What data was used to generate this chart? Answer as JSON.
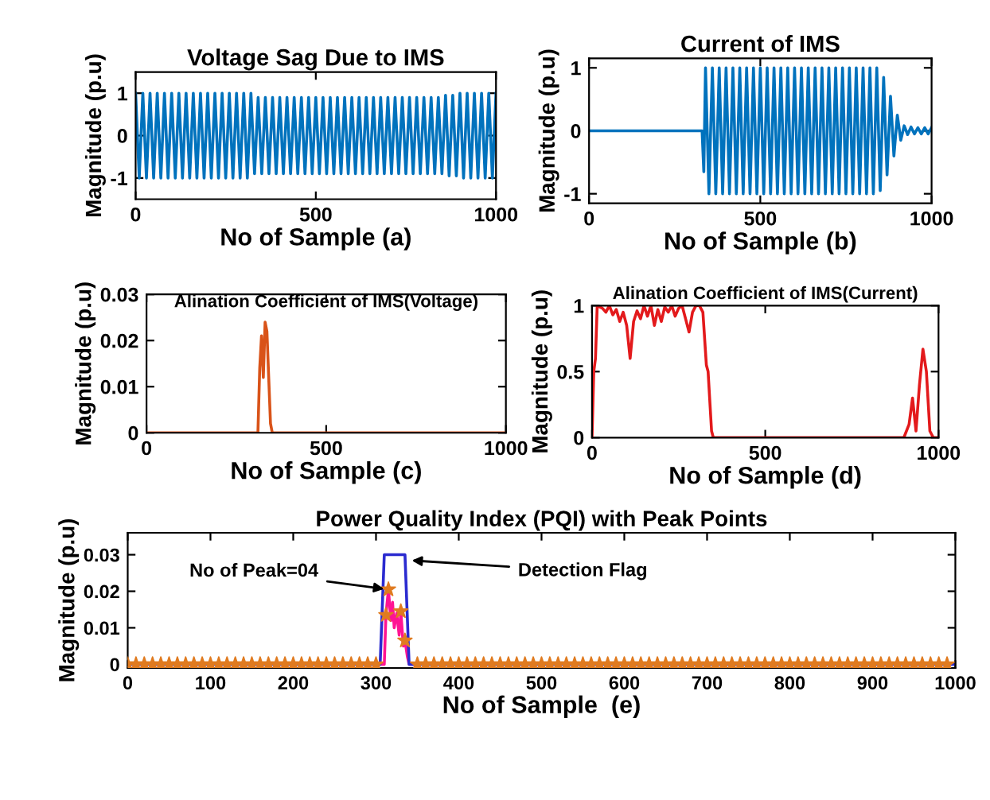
{
  "chart_data": [
    {
      "type": "line",
      "title": "Voltage Sag Due to IMS",
      "xlabel": "No of Sample (a)",
      "ylabel": "Magnitude (p.u)",
      "xlim": [
        0,
        1000
      ],
      "ylim": [
        -1.5,
        1.5
      ],
      "xticks": [
        0,
        500,
        1000
      ],
      "yticks": [
        -1,
        0,
        1
      ],
      "series": [
        {
          "color": "#0072bd",
          "x": [
            0,
            10,
            20,
            30,
            40,
            50,
            60,
            70,
            80,
            90,
            100,
            110,
            120,
            130,
            140,
            150,
            160,
            170,
            180,
            190,
            200,
            210,
            220,
            230,
            240,
            250,
            260,
            270,
            280,
            290,
            300,
            310,
            320,
            330,
            340,
            350,
            360,
            370,
            380,
            390,
            400,
            410,
            420,
            430,
            440,
            450,
            460,
            470,
            480,
            490,
            500,
            510,
            520,
            530,
            540,
            550,
            560,
            570,
            580,
            590,
            600,
            610,
            620,
            630,
            640,
            650,
            660,
            670,
            680,
            690,
            700,
            710,
            720,
            730,
            740,
            750,
            760,
            770,
            780,
            790,
            800,
            810,
            820,
            830,
            840,
            850,
            860,
            870,
            880,
            890,
            900,
            910,
            920,
            930,
            940,
            950,
            960,
            970,
            980,
            990,
            1000
          ],
          "values": [
            1,
            -1,
            1,
            -1,
            1,
            -1,
            1,
            -1,
            1,
            -1,
            1,
            -1,
            1,
            -1,
            1,
            -1,
            1,
            -1,
            1,
            -1,
            1,
            -1,
            1,
            -1,
            1,
            -1,
            1,
            -1,
            1,
            -1,
            1,
            -1,
            1,
            -0.9,
            0.9,
            -0.9,
            0.9,
            -0.9,
            0.9,
            -0.9,
            0.9,
            -0.9,
            0.9,
            -0.9,
            0.9,
            -0.9,
            0.9,
            -0.9,
            0.9,
            -0.9,
            0.9,
            -0.9,
            0.9,
            -0.9,
            0.9,
            -0.9,
            0.9,
            -0.9,
            0.9,
            -0.9,
            0.9,
            -0.9,
            0.9,
            -0.9,
            0.9,
            -0.9,
            0.9,
            -0.9,
            0.9,
            -0.9,
            0.9,
            -0.9,
            0.9,
            -0.9,
            0.9,
            -0.9,
            0.9,
            -0.9,
            0.9,
            -0.9,
            0.9,
            -0.9,
            0.9,
            -0.9,
            0.9,
            -0.9,
            0.95,
            -0.95,
            0.95,
            -0.95,
            1,
            -1,
            1,
            -1,
            1,
            -1,
            1,
            -1,
            1,
            -1,
            1
          ]
        }
      ]
    },
    {
      "type": "line",
      "title": "Current of IMS",
      "xlabel": "No of Sample (b)",
      "ylabel": "Magnitude (p.u)",
      "xlim": [
        0,
        1000
      ],
      "ylim": [
        -1.15,
        1.15
      ],
      "xticks": [
        0,
        500,
        1000
      ],
      "yticks": [
        -1,
        0,
        1
      ],
      "series": [
        {
          "color": "#0072bd",
          "x": [
            0,
            330,
            335,
            340,
            350,
            360,
            370,
            380,
            390,
            400,
            410,
            420,
            430,
            440,
            450,
            460,
            470,
            480,
            490,
            500,
            510,
            520,
            530,
            540,
            550,
            560,
            570,
            580,
            590,
            600,
            610,
            620,
            630,
            640,
            650,
            660,
            670,
            680,
            690,
            700,
            710,
            720,
            730,
            740,
            750,
            760,
            770,
            780,
            790,
            800,
            810,
            820,
            830,
            840,
            850,
            860,
            870,
            880,
            890,
            900,
            910,
            920,
            930,
            940,
            950,
            960,
            970,
            980,
            990,
            1000
          ],
          "values": [
            0,
            0,
            -0.65,
            1,
            -1,
            1,
            -1,
            1,
            -1,
            1,
            -1,
            1,
            -1,
            1,
            -1,
            1,
            -1,
            1,
            -1,
            1,
            -1,
            1,
            -1,
            1,
            -1,
            1,
            -1,
            1,
            -1,
            1,
            -1,
            1,
            -1,
            1,
            -1,
            1,
            -1,
            1,
            -1,
            1,
            -1,
            1,
            -1,
            1,
            -1,
            1,
            -1,
            1,
            -1,
            1,
            -1,
            1,
            -1,
            1,
            -0.95,
            0.85,
            -0.7,
            0.55,
            -0.4,
            0.25,
            -0.15,
            0.08,
            -0.06,
            0.06,
            -0.05,
            0.05,
            -0.05,
            0.05,
            -0.05,
            0.05
          ]
        }
      ]
    },
    {
      "type": "line",
      "title": "Alination Coefficient of IMS(Voltage)",
      "xlabel": "No of Sample (c)",
      "ylabel": "Magnitude (p.u)",
      "xlim": [
        0,
        1000
      ],
      "ylim": [
        0,
        0.03
      ],
      "xticks": [
        0,
        500,
        1000
      ],
      "yticks": [
        0,
        0.01,
        0.02,
        0.03
      ],
      "series": [
        {
          "color": "#d95319",
          "x": [
            0,
            310,
            315,
            320,
            325,
            330,
            335,
            340,
            345,
            350,
            1000
          ],
          "values": [
            0,
            0,
            0.014,
            0.021,
            0.012,
            0.024,
            0.022,
            0.012,
            0.002,
            0,
            0
          ]
        }
      ]
    },
    {
      "type": "line",
      "title": "Alination Coefficient of IMS(Current)",
      "xlabel": "No of Sample (d)",
      "ylabel": "Magnitude (p.u)",
      "xlim": [
        0,
        1000
      ],
      "ylim": [
        0,
        1
      ],
      "xticks": [
        0,
        500,
        1000
      ],
      "yticks": [
        0,
        0.5,
        1
      ],
      "series": [
        {
          "color": "#e31a1c",
          "x": [
            0,
            5,
            10,
            15,
            30,
            40,
            50,
            60,
            70,
            80,
            90,
            100,
            110,
            120,
            130,
            140,
            150,
            160,
            170,
            180,
            190,
            200,
            210,
            220,
            230,
            240,
            250,
            260,
            270,
            280,
            290,
            300,
            310,
            320,
            330,
            335,
            345,
            350,
            900,
            915,
            925,
            935,
            945,
            955,
            965,
            975,
            985,
            1000
          ],
          "values": [
            0,
            0.5,
            0.6,
            1,
            0.98,
            0.95,
            1,
            0.93,
            0.97,
            0.88,
            0.95,
            0.85,
            0.6,
            0.88,
            0.96,
            0.9,
            1,
            0.92,
            1,
            0.85,
            0.97,
            0.88,
            0.99,
            0.95,
            1,
            0.92,
            0.98,
            1,
            0.9,
            0.8,
            0.95,
            1,
            1,
            0.95,
            0.55,
            0.5,
            0.05,
            0,
            0,
            0.1,
            0.3,
            0.05,
            0.4,
            0.67,
            0.5,
            0.05,
            0,
            0
          ]
        }
      ]
    },
    {
      "type": "line",
      "title": "Power Quality Index (PQI) with Peak Points",
      "xlabel": "No of Sample  (e)",
      "ylabel": "Magnitude (p.u)",
      "xlim": [
        0,
        1000
      ],
      "ylim": [
        -0.001,
        0.036
      ],
      "xticks": [
        0,
        100,
        200,
        300,
        400,
        500,
        600,
        700,
        800,
        900,
        1000
      ],
      "yticks": [
        0,
        0.01,
        0.02,
        0.03
      ],
      "annotations": [
        {
          "text": "No of Peak=04",
          "x": 315,
          "y": 0.0205
        },
        {
          "text": "Detection Flag",
          "x": 338,
          "y": 0.0285
        }
      ],
      "series": [
        {
          "type": "line",
          "color": "#ff1493",
          "x": [
            305,
            310,
            312,
            315,
            318,
            320,
            322,
            325,
            328,
            330,
            333,
            335,
            338,
            340,
            345
          ],
          "values": [
            0,
            0,
            0.0135,
            0.0205,
            0.012,
            0.017,
            0.01,
            0.014,
            0.008,
            0.0145,
            0.005,
            0.0065,
            0.002,
            0,
            0
          ]
        },
        {
          "type": "line",
          "color": "#2b2bd0",
          "x": [
            0,
            305,
            310,
            335,
            340,
            1000
          ],
          "values": [
            0,
            0,
            0.03,
            0.03,
            0,
            0
          ]
        },
        {
          "type": "scatter",
          "marker": "star",
          "color": "#e07b20",
          "x": [
            0,
            10,
            20,
            30,
            40,
            50,
            60,
            70,
            80,
            90,
            100,
            110,
            120,
            130,
            140,
            150,
            160,
            170,
            180,
            190,
            200,
            210,
            220,
            230,
            240,
            250,
            260,
            270,
            280,
            290,
            300,
            312,
            315,
            330,
            335,
            350,
            360,
            370,
            380,
            390,
            400,
            410,
            420,
            430,
            440,
            450,
            460,
            470,
            480,
            490,
            500,
            510,
            520,
            530,
            540,
            550,
            560,
            570,
            580,
            590,
            600,
            610,
            620,
            630,
            640,
            650,
            660,
            670,
            680,
            690,
            700,
            710,
            720,
            730,
            740,
            750,
            760,
            770,
            780,
            790,
            800,
            810,
            820,
            830,
            840,
            850,
            860,
            870,
            880,
            890,
            900,
            910,
            920,
            930,
            940,
            950,
            960,
            970,
            980,
            990
          ],
          "values": [
            0,
            0,
            0,
            0,
            0,
            0,
            0,
            0,
            0,
            0,
            0,
            0,
            0,
            0,
            0,
            0,
            0,
            0,
            0,
            0,
            0,
            0,
            0,
            0,
            0,
            0,
            0,
            0,
            0,
            0,
            0,
            0.0135,
            0.0205,
            0.0145,
            0.0065,
            0,
            0,
            0,
            0,
            0,
            0,
            0,
            0,
            0,
            0,
            0,
            0,
            0,
            0,
            0,
            0,
            0,
            0,
            0,
            0,
            0,
            0,
            0,
            0,
            0,
            0,
            0,
            0,
            0,
            0,
            0,
            0,
            0,
            0,
            0,
            0,
            0,
            0,
            0,
            0,
            0,
            0,
            0,
            0,
            0,
            0,
            0,
            0,
            0,
            0,
            0,
            0,
            0,
            0,
            0,
            0,
            0,
            0,
            0,
            0,
            0,
            0,
            0,
            0,
            0
          ]
        }
      ]
    }
  ]
}
